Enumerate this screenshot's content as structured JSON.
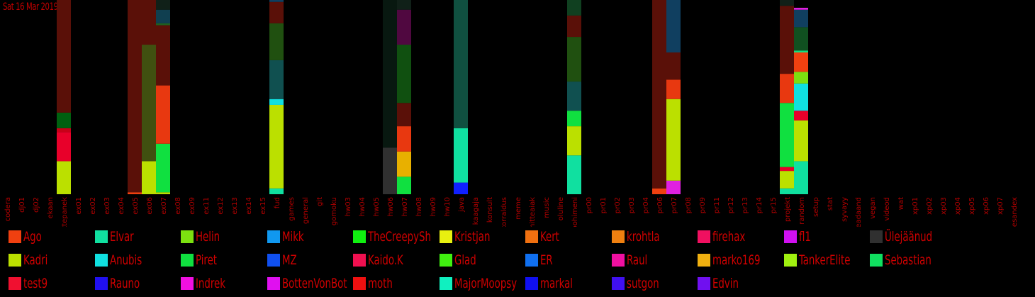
{
  "header": {
    "date": "Sat 16 Mar 2019"
  },
  "chart_data": {
    "type": "bar",
    "stacked": true,
    "categories": [
      "codera",
      "dj01",
      "dj02",
      "ekaan",
      "ettepanek",
      "ex01",
      "ex02",
      "ex03",
      "ex04",
      "ex05",
      "ex06",
      "ex07",
      "ex08",
      "ex09",
      "ex11",
      "ex12",
      "ex13",
      "ex14",
      "ex15",
      "fud",
      "games",
      "general",
      "git",
      "gomoku",
      "hw03",
      "hw04",
      "hw05",
      "hw06",
      "hw07",
      "hw08",
      "hw09",
      "hw10",
      "java",
      "kaagaja",
      "konsult",
      "korraldus",
      "meme",
      "mitteaiak",
      "music",
      "oluline",
      "pohimeni",
      "pr00",
      "pr01",
      "pr02",
      "pr03",
      "pr04",
      "pr06",
      "pr07",
      "pr08",
      "pr09",
      "pr11",
      "pr12",
      "pr13",
      "pr14",
      "pr15",
      "projekt",
      "random",
      "setup",
      "stat",
      "syvayy",
      "teadaand",
      "vegan",
      "videod",
      "wat",
      "xp01",
      "xp02",
      "xp03",
      "xp04",
      "xp05",
      "xp06",
      "xp07",
      "olesandex"
    ],
    "ylim": [
      0,
      100
    ],
    "stacks": [
      {
        "category": "ettepanek",
        "segments": [
          {
            "color": "#bbe000",
            "value": 17
          },
          {
            "color": "#e8002a",
            "value": 15
          },
          {
            "color": "#c80018",
            "value": 2
          },
          {
            "color": "#006010",
            "value": 8
          },
          {
            "color": "#5a1008",
            "value": 58
          }
        ]
      },
      {
        "category": "ex05",
        "segments": [
          {
            "color": "#f04010",
            "value": 1
          },
          {
            "color": "#5a1008",
            "value": 99
          }
        ]
      },
      {
        "category": "ex06",
        "segments": [
          {
            "color": "#bbe000",
            "value": 17
          },
          {
            "color": "#405010",
            "value": 60
          },
          {
            "color": "#5a1008",
            "value": 23
          }
        ]
      },
      {
        "category": "ex07",
        "segments": [
          {
            "color": "#bbe000",
            "value": 1
          },
          {
            "color": "#10e040",
            "value": 25
          },
          {
            "color": "#e83810",
            "value": 30
          },
          {
            "color": "#5a1008",
            "value": 31
          },
          {
            "color": "#206020",
            "value": 1
          },
          {
            "color": "#103f50",
            "value": 7
          },
          {
            "color": "#102018",
            "value": 5
          }
        ]
      },
      {
        "category": "fud",
        "segments": [
          {
            "color": "#10e0a0",
            "value": 3
          },
          {
            "color": "#bbe000",
            "value": 43
          },
          {
            "color": "#10e0e0",
            "value": 3
          },
          {
            "color": "#105050",
            "value": 20
          },
          {
            "color": "#205010",
            "value": 19
          },
          {
            "color": "#5a1008",
            "value": 11
          },
          {
            "color": "#103f60",
            "value": 1
          }
        ]
      },
      {
        "category": "hw06",
        "segments": [
          {
            "color": "#303030",
            "value": 24
          },
          {
            "color": "#081810",
            "value": 76
          }
        ]
      },
      {
        "category": "hw07",
        "segments": [
          {
            "color": "#10e040",
            "value": 9
          },
          {
            "color": "#e8b000",
            "value": 13
          },
          {
            "color": "#e83810",
            "value": 13
          },
          {
            "color": "#5a1008",
            "value": 12
          },
          {
            "color": "#105010",
            "value": 30
          },
          {
            "color": "#500840",
            "value": 18
          },
          {
            "color": "#102018",
            "value": 5
          }
        ]
      },
      {
        "category": "java",
        "segments": [
          {
            "color": "#1020ff",
            "value": 6
          },
          {
            "color": "#10e0a0",
            "value": 28
          },
          {
            "color": "#105040",
            "value": 66
          }
        ]
      },
      {
        "category": "pohimeni",
        "segments": [
          {
            "color": "#10e0a0",
            "value": 20
          },
          {
            "color": "#bbe000",
            "value": 15
          },
          {
            "color": "#10e040",
            "value": 8
          },
          {
            "color": "#105050",
            "value": 15
          },
          {
            "color": "#205010",
            "value": 23
          },
          {
            "color": "#5a1008",
            "value": 11
          },
          {
            "color": "#104020",
            "value": 8
          }
        ]
      },
      {
        "category": "pr06",
        "segments": [
          {
            "color": "#f04010",
            "value": 3
          },
          {
            "color": "#5a1008",
            "value": 97
          }
        ]
      },
      {
        "category": "pr07",
        "segments": [
          {
            "color": "#e020e0",
            "value": 7
          },
          {
            "color": "#bbe000",
            "value": 42
          },
          {
            "color": "#e83810",
            "value": 10
          },
          {
            "color": "#5a1008",
            "value": 14
          },
          {
            "color": "#103f60",
            "value": 27
          }
        ]
      },
      {
        "category": "projekt",
        "segments": [
          {
            "color": "#10e0a0",
            "value": 3
          },
          {
            "color": "#bbe000",
            "value": 9
          },
          {
            "color": "#e8002a",
            "value": 2
          },
          {
            "color": "#10e040",
            "value": 33
          },
          {
            "color": "#e83810",
            "value": 15
          },
          {
            "color": "#5a1008",
            "value": 35
          },
          {
            "color": "#102018",
            "value": 3
          }
        ]
      },
      {
        "category": "random",
        "segments": [
          {
            "color": "#10e0a0",
            "value": 17
          },
          {
            "color": "#bbe000",
            "value": 21
          },
          {
            "color": "#e8002a",
            "value": 5
          },
          {
            "color": "#10e0e0",
            "value": 14
          },
          {
            "color": "#7ce010",
            "value": 6
          },
          {
            "color": "#f04010",
            "value": 10
          },
          {
            "color": "#10e080",
            "value": 1
          },
          {
            "color": "#105020",
            "value": 12
          },
          {
            "color": "#103f60",
            "value": 9
          },
          {
            "color": "#e020e0",
            "value": 1
          }
        ]
      }
    ],
    "legend": [
      {
        "name": "Ago",
        "color": "#f04010"
      },
      {
        "name": "Elvar",
        "color": "#10e0a0"
      },
      {
        "name": "Helin",
        "color": "#7ce010"
      },
      {
        "name": "Mikk",
        "color": "#1098f0"
      },
      {
        "name": "TheCreepySh",
        "color": "#10f010"
      },
      {
        "name": "Kristjan",
        "color": "#e8f010"
      },
      {
        "name": "Kert",
        "color": "#f07010"
      },
      {
        "name": "krohtla",
        "color": "#f08010"
      },
      {
        "name": "firehax",
        "color": "#f01060"
      },
      {
        "name": "fl1",
        "color": "#d010f0"
      },
      {
        "name": "Ülejäänud",
        "color": "#303030"
      },
      {
        "name": "Kadri",
        "color": "#bbe000"
      },
      {
        "name": "Anubis",
        "color": "#10e0e0"
      },
      {
        "name": "Piret",
        "color": "#10e040"
      },
      {
        "name": "MZ",
        "color": "#1050f0"
      },
      {
        "name": "Kaido.K",
        "color": "#f01050"
      },
      {
        "name": "Glad",
        "color": "#40f010"
      },
      {
        "name": "ER",
        "color": "#1070f0"
      },
      {
        "name": "Raul",
        "color": "#f010a0"
      },
      {
        "name": "marko169",
        "color": "#f0b010"
      },
      {
        "name": "TankerElite",
        "color": "#a0f010"
      },
      {
        "name": "Sebastian",
        "color": "#10e060"
      },
      {
        "name": "test9",
        "color": "#f01030"
      },
      {
        "name": "Rauno",
        "color": "#2010f0"
      },
      {
        "name": "Indrek",
        "color": "#f010e0"
      },
      {
        "name": "BottenVonBot",
        "color": "#e010f0"
      },
      {
        "name": "moth",
        "color": "#f01010"
      },
      {
        "name": "MajorMoopsy",
        "color": "#10f0c0"
      },
      {
        "name": "markal",
        "color": "#1010f0"
      },
      {
        "name": "sutgon",
        "color": "#4010f0"
      },
      {
        "name": "Edvin",
        "color": "#7010f0"
      }
    ]
  }
}
